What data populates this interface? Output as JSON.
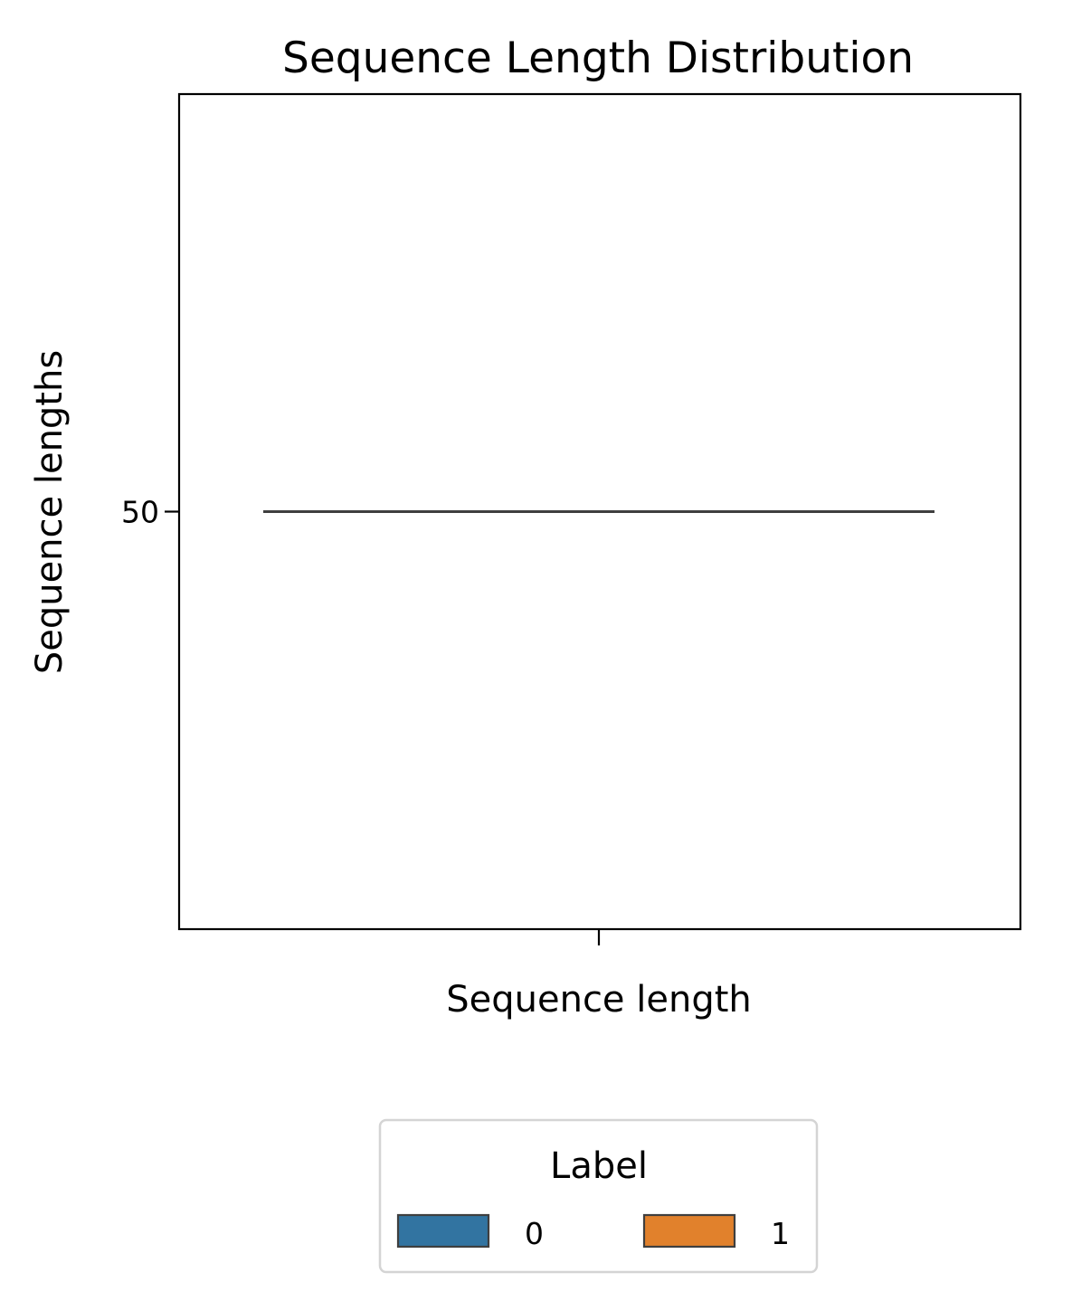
{
  "chart_data": {
    "type": "violin",
    "title": "Sequence Length Distribution",
    "xlabel": "Sequence length",
    "ylabel": "Sequence lengths",
    "y_ticks": [
      50
    ],
    "y_tick_labels": [
      "50"
    ],
    "ylim": [
      45,
      55
    ],
    "hue_title": "Label",
    "series": [
      {
        "name": "0",
        "color": "#3274a1",
        "value": 50
      },
      {
        "name": "1",
        "color": "#e1812c",
        "value": 50
      }
    ],
    "grid": false,
    "legend_position": "bottom-center"
  }
}
